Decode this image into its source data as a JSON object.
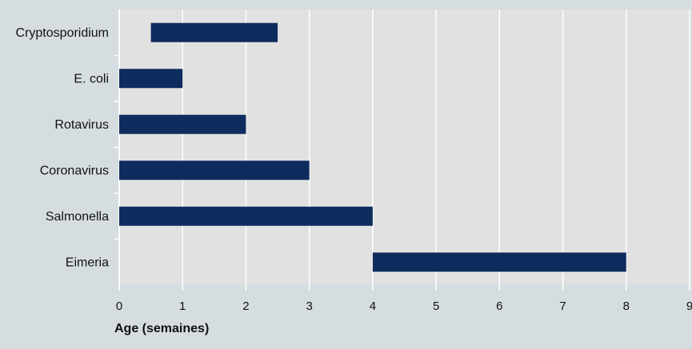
{
  "chart_data": {
    "type": "bar",
    "orientation": "horizontal",
    "subtype": "floating-range",
    "categories": [
      "Cryptosporidium",
      "E. coli",
      "Rotavirus",
      "Coronavirus",
      "Salmonella",
      "Eimeria"
    ],
    "ranges": [
      [
        0.5,
        2.5
      ],
      [
        0,
        1
      ],
      [
        0,
        2
      ],
      [
        0,
        3
      ],
      [
        0,
        4
      ],
      [
        4,
        8
      ]
    ],
    "xlabel": "Age (semaines)",
    "xlim": [
      0,
      9
    ],
    "xticks": [
      0,
      1,
      2,
      3,
      4,
      5,
      6,
      7,
      8,
      9
    ],
    "grid": "vertical",
    "colors": {
      "bar": "#0f2c5f",
      "plot_bg": "#e1e1e1",
      "page_bg": "#d6dde1",
      "grid": "#ffffff"
    }
  }
}
